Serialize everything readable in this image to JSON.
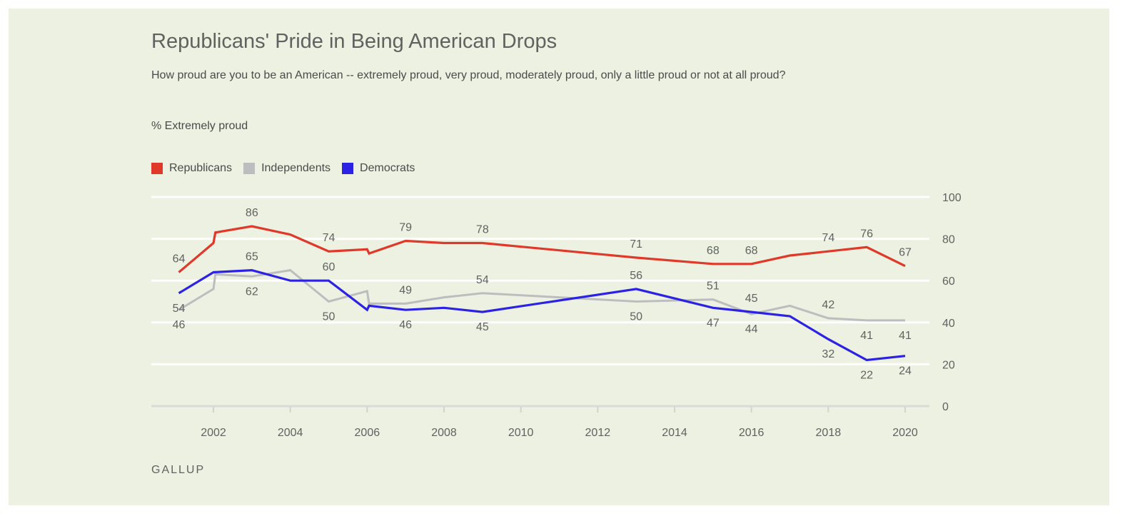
{
  "title": "Republicans' Pride in Being American Drops",
  "subtitle": "How proud are you to be an American -- extremely proud, very proud, moderately proud, only a little proud or not at all proud?",
  "unit_label": "% Extremely proud",
  "source": "GALLUP",
  "colors": {
    "background": "#edf1e1",
    "Republicans": "#e0392a",
    "Independents": "#bcbdbf",
    "Democrats": "#2b22e6",
    "gridline": "#ffffff",
    "text": "#5f6360"
  },
  "chart_data": {
    "type": "line",
    "title": "Republicans' Pride in Being American Drops",
    "subtitle": "How proud are you to be an American -- extremely proud, very proud, moderately proud, only a little proud or not at all proud?",
    "ylabel": "% Extremely proud",
    "xlabel": "",
    "xlim": [
      2000.8,
      2020.6
    ],
    "ylim": [
      0,
      100
    ],
    "x_ticks": [
      2002,
      2004,
      2006,
      2008,
      2010,
      2012,
      2014,
      2016,
      2018,
      2020
    ],
    "y_ticks": [
      0,
      20,
      40,
      60,
      80,
      100
    ],
    "y_axis_side": "right",
    "grid": true,
    "legend_position": "top-left",
    "series": [
      {
        "name": "Republicans",
        "color": "#e0392a",
        "points": [
          {
            "x": 2001.1,
            "y": 64,
            "label": "64"
          },
          {
            "x": 2002.0,
            "y": 78
          },
          {
            "x": 2002.05,
            "y": 83
          },
          {
            "x": 2003.0,
            "y": 86,
            "label": "86"
          },
          {
            "x": 2004.0,
            "y": 82
          },
          {
            "x": 2005.0,
            "y": 74,
            "label": "74"
          },
          {
            "x": 2006.0,
            "y": 75
          },
          {
            "x": 2006.05,
            "y": 73
          },
          {
            "x": 2007.0,
            "y": 79,
            "label": "79"
          },
          {
            "x": 2008.0,
            "y": 78
          },
          {
            "x": 2009.0,
            "y": 78,
            "label": "78"
          },
          {
            "x": 2013.0,
            "y": 71,
            "label": "71"
          },
          {
            "x": 2015.0,
            "y": 68,
            "label": "68"
          },
          {
            "x": 2016.0,
            "y": 68,
            "label": "68"
          },
          {
            "x": 2017.0,
            "y": 72
          },
          {
            "x": 2018.0,
            "y": 74,
            "label": "74"
          },
          {
            "x": 2019.0,
            "y": 76,
            "label": "76"
          },
          {
            "x": 2020.0,
            "y": 67,
            "label": "67"
          }
        ]
      },
      {
        "name": "Independents",
        "color": "#bcbdbf",
        "points": [
          {
            "x": 2001.1,
            "y": 46,
            "label": "46"
          },
          {
            "x": 2002.0,
            "y": 56
          },
          {
            "x": 2002.05,
            "y": 63
          },
          {
            "x": 2003.0,
            "y": 62,
            "label": "62"
          },
          {
            "x": 2004.0,
            "y": 65
          },
          {
            "x": 2005.0,
            "y": 50,
            "label": "50"
          },
          {
            "x": 2006.0,
            "y": 55
          },
          {
            "x": 2006.05,
            "y": 49
          },
          {
            "x": 2007.0,
            "y": 49,
            "label": "49"
          },
          {
            "x": 2008.0,
            "y": 52
          },
          {
            "x": 2009.0,
            "y": 54,
            "label": "54"
          },
          {
            "x": 2013.0,
            "y": 50,
            "label": "50"
          },
          {
            "x": 2015.0,
            "y": 51,
            "label": "51"
          },
          {
            "x": 2016.0,
            "y": 44,
            "label": "44"
          },
          {
            "x": 2017.0,
            "y": 48
          },
          {
            "x": 2018.0,
            "y": 42,
            "label": "42"
          },
          {
            "x": 2019.0,
            "y": 41,
            "label": "41"
          },
          {
            "x": 2020.0,
            "y": 41,
            "label": "41"
          }
        ]
      },
      {
        "name": "Democrats",
        "color": "#2b22e6",
        "points": [
          {
            "x": 2001.1,
            "y": 54,
            "label": "54"
          },
          {
            "x": 2002.0,
            "y": 64
          },
          {
            "x": 2003.0,
            "y": 65,
            "label": "65"
          },
          {
            "x": 2004.0,
            "y": 60
          },
          {
            "x": 2005.0,
            "y": 60,
            "label": "60"
          },
          {
            "x": 2006.0,
            "y": 46
          },
          {
            "x": 2006.05,
            "y": 48
          },
          {
            "x": 2007.0,
            "y": 46,
            "label": "46"
          },
          {
            "x": 2008.0,
            "y": 47
          },
          {
            "x": 2009.0,
            "y": 45,
            "label": "45"
          },
          {
            "x": 2013.0,
            "y": 56,
            "label": "56"
          },
          {
            "x": 2015.0,
            "y": 47,
            "label": "47"
          },
          {
            "x": 2016.0,
            "y": 45,
            "label": "45"
          },
          {
            "x": 2017.0,
            "y": 43
          },
          {
            "x": 2018.0,
            "y": 32,
            "label": "32"
          },
          {
            "x": 2019.0,
            "y": 22,
            "label": "22"
          },
          {
            "x": 2020.0,
            "y": 24,
            "label": "24"
          }
        ]
      }
    ]
  }
}
